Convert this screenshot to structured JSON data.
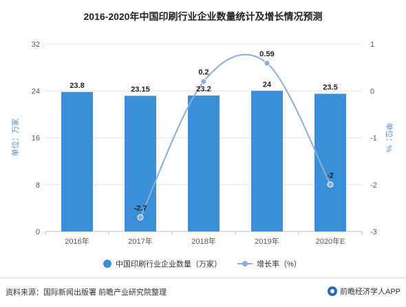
{
  "chart_data": {
    "type": "bar",
    "title": "2016-2020年中国印刷行业企业数量统计及增长情况预测",
    "categories": [
      "2016年",
      "2017年",
      "2018年",
      "2019年",
      "2020年E"
    ],
    "series": [
      {
        "name": "中国印刷行业企业数量（万家）",
        "type": "bar",
        "axis": "left",
        "color": "#3a8fd6",
        "values": [
          23.8,
          23.15,
          23.2,
          24,
          23.5
        ],
        "labels": [
          "23.8",
          "23.15",
          "23.2",
          "24",
          "23.5"
        ]
      },
      {
        "name": "增长率（%）",
        "type": "line",
        "axis": "right",
        "color": "#8aaee0",
        "values": [
          null,
          -2.7,
          0.2,
          0.59,
          -2
        ],
        "labels": [
          "",
          "-2.7",
          "0.2",
          "0.59",
          "-2"
        ]
      }
    ],
    "y_left": {
      "label": "单位：万家",
      "ylim": [
        0,
        32
      ],
      "ticks": [
        "0",
        "8",
        "16",
        "24",
        "32"
      ]
    },
    "y_right": {
      "label": "单位：%",
      "ylim": [
        -3,
        1
      ],
      "ticks": [
        "-3",
        "-2",
        "-1",
        "0",
        "1"
      ]
    },
    "legend": "bottom",
    "grid": true
  },
  "footer": {
    "source": "资料来源：国际新闻出版署 前瞻产业研究院整理",
    "brand": "前瞻经济学人APP"
  }
}
